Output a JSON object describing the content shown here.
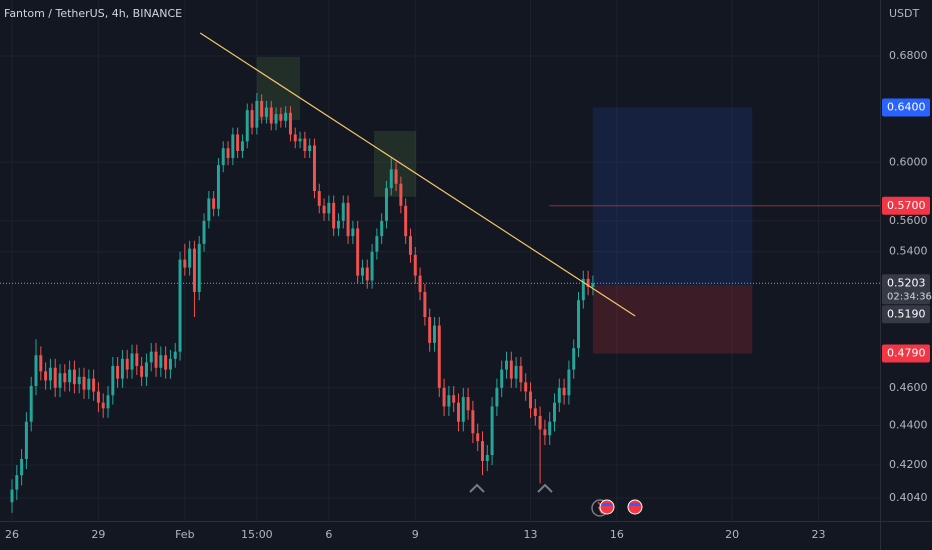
{
  "chart_data": {
    "type": "candlestick",
    "title": "Fantom / TetherUS, 4h, BINANCE",
    "y_axis_label": "USDT",
    "log_scale": true,
    "grid": true,
    "up_color": "#26a69a",
    "down_color": "#ef5350",
    "xlim": [
      -2.5,
      180.8
    ],
    "xticks": [
      {
        "value": 0,
        "label": "26"
      },
      {
        "value": 18,
        "label": "29"
      },
      {
        "value": 36,
        "label": "Feb"
      },
      {
        "value": 51,
        "label": "15:00"
      },
      {
        "value": 66,
        "label": "6"
      },
      {
        "value": 84,
        "label": "9"
      },
      {
        "value": 108,
        "label": "13"
      },
      {
        "value": 126,
        "label": "16"
      },
      {
        "value": 150,
        "label": "20"
      },
      {
        "value": 168,
        "label": "23"
      }
    ],
    "ylim": [
      0.3932,
      0.7264
    ],
    "yticks": [
      {
        "value": 0.68,
        "label": "0.6800"
      },
      {
        "value": 0.6,
        "label": "0.6000"
      },
      {
        "value": 0.56,
        "label": "0.5600"
      },
      {
        "value": 0.54,
        "label": "0.5400"
      },
      {
        "value": 0.46,
        "label": "0.4600"
      },
      {
        "value": 0.44,
        "label": "0.4400"
      },
      {
        "value": 0.42,
        "label": "0.4200"
      },
      {
        "value": 0.404,
        "label": "0.4040"
      }
    ],
    "open": [
      0.402,
      0.408,
      0.415,
      0.423,
      0.442,
      0.461,
      0.478,
      0.469,
      0.464,
      0.471,
      0.46,
      0.468,
      0.463,
      0.47,
      0.462,
      0.466,
      0.459,
      0.465,
      0.458,
      0.452,
      0.449,
      0.456,
      0.472,
      0.465,
      0.476,
      0.47,
      0.479,
      0.472,
      0.466,
      0.474,
      0.48,
      0.471,
      0.478,
      0.47,
      0.476,
      0.48,
      0.535,
      0.53,
      0.542,
      0.515,
      0.545,
      0.56,
      0.575,
      0.568,
      0.598,
      0.61,
      0.603,
      0.62,
      0.608,
      0.615,
      0.638,
      0.625,
      0.645,
      0.633,
      0.64,
      0.628,
      0.635,
      0.63,
      0.636,
      0.62,
      0.615,
      0.617,
      0.608,
      0.612,
      0.58,
      0.57,
      0.565,
      0.572,
      0.555,
      0.56,
      0.572,
      0.55,
      0.555,
      0.525,
      0.53,
      0.522,
      0.54,
      0.55,
      0.56,
      0.582,
      0.595,
      0.585,
      0.57,
      0.55,
      0.538,
      0.525,
      0.515,
      0.5,
      0.485,
      0.495,
      0.46,
      0.45,
      0.456,
      0.452,
      0.442,
      0.455,
      0.448,
      0.436,
      0.432,
      0.422,
      0.425,
      0.45,
      0.46,
      0.47,
      0.475,
      0.465,
      0.472,
      0.463,
      0.458,
      0.449,
      0.445,
      0.438,
      0.435,
      0.442,
      0.452,
      0.46,
      0.456,
      0.47,
      0.482,
      0.51,
      0.523,
      0.518
    ],
    "high": [
      0.413,
      0.42,
      0.428,
      0.447,
      0.466,
      0.487,
      0.483,
      0.474,
      0.476,
      0.476,
      0.473,
      0.473,
      0.475,
      0.475,
      0.471,
      0.471,
      0.47,
      0.47,
      0.463,
      0.457,
      0.461,
      0.477,
      0.477,
      0.481,
      0.481,
      0.484,
      0.484,
      0.477,
      0.479,
      0.485,
      0.485,
      0.483,
      0.483,
      0.481,
      0.485,
      0.54,
      0.545,
      0.547,
      0.547,
      0.55,
      0.565,
      0.58,
      0.58,
      0.603,
      0.615,
      0.615,
      0.625,
      0.625,
      0.62,
      0.643,
      0.643,
      0.651,
      0.65,
      0.645,
      0.645,
      0.64,
      0.64,
      0.641,
      0.641,
      0.625,
      0.622,
      0.622,
      0.617,
      0.617,
      0.585,
      0.575,
      0.577,
      0.577,
      0.565,
      0.577,
      0.577,
      0.56,
      0.56,
      0.535,
      0.535,
      0.545,
      0.555,
      0.565,
      0.587,
      0.603,
      0.6,
      0.59,
      0.575,
      0.555,
      0.543,
      0.53,
      0.52,
      0.505,
      0.5,
      0.5,
      0.465,
      0.461,
      0.461,
      0.457,
      0.46,
      0.46,
      0.453,
      0.441,
      0.437,
      0.43,
      0.455,
      0.465,
      0.475,
      0.48,
      0.48,
      0.477,
      0.477,
      0.468,
      0.463,
      0.454,
      0.45,
      0.443,
      0.447,
      0.457,
      0.465,
      0.465,
      0.475,
      0.487,
      0.515,
      0.528,
      0.528,
      0.525
    ],
    "low": [
      0.397,
      0.403,
      0.41,
      0.418,
      0.437,
      0.456,
      0.464,
      0.459,
      0.459,
      0.455,
      0.455,
      0.458,
      0.458,
      0.457,
      0.457,
      0.454,
      0.454,
      0.453,
      0.447,
      0.444,
      0.444,
      0.451,
      0.46,
      0.46,
      0.465,
      0.465,
      0.467,
      0.461,
      0.461,
      0.469,
      0.466,
      0.466,
      0.465,
      0.465,
      0.471,
      0.475,
      0.525,
      0.525,
      0.5,
      0.51,
      0.54,
      0.555,
      0.563,
      0.563,
      0.593,
      0.598,
      0.598,
      0.603,
      0.603,
      0.61,
      0.62,
      0.62,
      0.628,
      0.628,
      0.623,
      0.623,
      0.625,
      0.625,
      0.615,
      0.61,
      0.61,
      0.603,
      0.603,
      0.575,
      0.565,
      0.56,
      0.56,
      0.55,
      0.55,
      0.555,
      0.545,
      0.545,
      0.52,
      0.52,
      0.517,
      0.517,
      0.535,
      0.545,
      0.555,
      0.577,
      0.58,
      0.565,
      0.545,
      0.533,
      0.52,
      0.51,
      0.495,
      0.48,
      0.48,
      0.455,
      0.445,
      0.445,
      0.447,
      0.437,
      0.437,
      0.443,
      0.431,
      0.427,
      0.415,
      0.417,
      0.42,
      0.445,
      0.455,
      0.465,
      0.46,
      0.46,
      0.458,
      0.453,
      0.444,
      0.44,
      0.411,
      0.43,
      0.43,
      0.437,
      0.447,
      0.451,
      0.451,
      0.465,
      0.477,
      0.505,
      0.513,
      0.513
    ],
    "close": [
      0.408,
      0.415,
      0.423,
      0.442,
      0.461,
      0.478,
      0.469,
      0.464,
      0.471,
      0.46,
      0.468,
      0.463,
      0.47,
      0.462,
      0.466,
      0.459,
      0.465,
      0.458,
      0.452,
      0.449,
      0.456,
      0.472,
      0.465,
      0.476,
      0.47,
      0.479,
      0.472,
      0.466,
      0.474,
      0.48,
      0.471,
      0.478,
      0.47,
      0.476,
      0.48,
      0.535,
      0.53,
      0.542,
      0.515,
      0.545,
      0.56,
      0.575,
      0.568,
      0.598,
      0.61,
      0.603,
      0.62,
      0.608,
      0.615,
      0.638,
      0.625,
      0.645,
      0.633,
      0.64,
      0.628,
      0.635,
      0.63,
      0.636,
      0.62,
      0.615,
      0.617,
      0.608,
      0.612,
      0.58,
      0.57,
      0.565,
      0.572,
      0.555,
      0.56,
      0.572,
      0.55,
      0.555,
      0.525,
      0.53,
      0.522,
      0.54,
      0.55,
      0.56,
      0.582,
      0.595,
      0.585,
      0.57,
      0.55,
      0.538,
      0.525,
      0.515,
      0.5,
      0.485,
      0.495,
      0.46,
      0.45,
      0.456,
      0.452,
      0.442,
      0.455,
      0.448,
      0.436,
      0.432,
      0.422,
      0.425,
      0.45,
      0.46,
      0.47,
      0.475,
      0.465,
      0.472,
      0.463,
      0.458,
      0.449,
      0.445,
      0.438,
      0.435,
      0.442,
      0.452,
      0.46,
      0.456,
      0.47,
      0.482,
      0.51,
      0.523,
      0.518,
      0.5203
    ],
    "countdown": "02:34:36",
    "last_price_color": "#363a45",
    "trend_line": {
      "x": [
        39.2,
        129.8
      ],
      "y": [
        0.6987,
        0.5006
      ],
      "color": "#f5c76a"
    },
    "zones": [
      {
        "x": [
          51,
          60
        ],
        "y": [
          0.6306,
          0.6792
        ]
      },
      {
        "x": [
          75.4,
          84.2
        ],
        "y": [
          0.5761,
          0.6225
        ]
      }
    ],
    "level": {
      "value": 0.57,
      "label": "0.5700",
      "x": 111.9,
      "color": "#f23645"
    },
    "position": {
      "x": [
        121,
        154.2
      ],
      "target": 0.64,
      "target_label": "0.6400",
      "target_color": "#2962ff",
      "entry": 0.519,
      "entry_label": "0.5190",
      "entry_color": "#363a45",
      "stop": 0.479,
      "stop_label": "0.4790",
      "stop_color": "#f23645"
    }
  }
}
